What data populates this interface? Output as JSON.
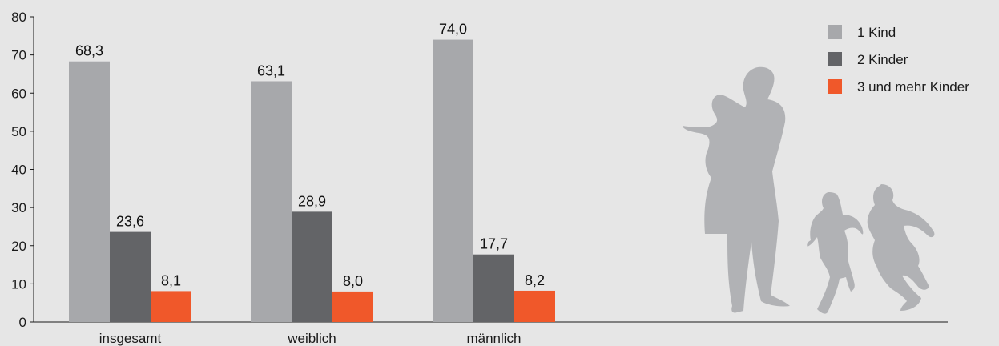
{
  "chart_data": {
    "type": "bar",
    "categories": [
      "insgesamt",
      "weiblich",
      "männlich"
    ],
    "series": [
      {
        "name": "1 Kind",
        "values": [
          68.3,
          63.1,
          74.0
        ],
        "labels": [
          "68,3",
          "63,1",
          "74,0"
        ],
        "color": "#a7a8ab"
      },
      {
        "name": "2 Kinder",
        "values": [
          23.6,
          28.9,
          17.7
        ],
        "labels": [
          "23,6",
          "28,9",
          "17,7"
        ],
        "color": "#636467"
      },
      {
        "name": "3 und mehr Kinder",
        "values": [
          8.1,
          8.0,
          8.2
        ],
        "labels": [
          "8,1",
          "8,0",
          "8,2"
        ],
        "color": "#f0582a"
      }
    ],
    "ylim": [
      0,
      80
    ],
    "yticks": [
      0,
      10,
      20,
      30,
      40,
      50,
      60,
      70,
      80
    ],
    "xlabel": "",
    "ylabel": "",
    "title": "",
    "grid": false,
    "legend_position": "top-right"
  },
  "decoration": {
    "silhouette_color": "#b1b2b5",
    "icon": "family-silhouette-icon"
  }
}
